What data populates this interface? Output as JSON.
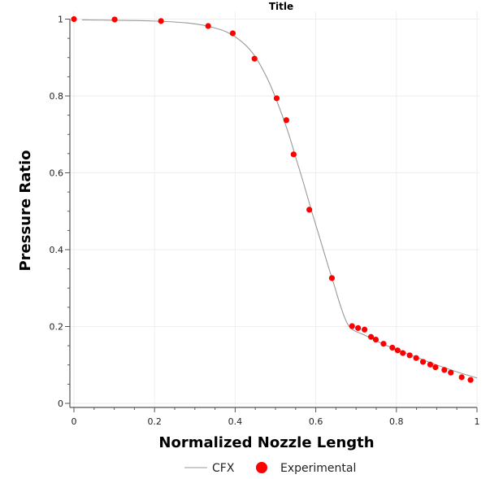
{
  "chart_data": {
    "type": "line",
    "title": "Title",
    "xlabel": "Normalized Nozzle Length",
    "ylabel": "Pressure Ratio",
    "xlim": [
      0,
      1
    ],
    "ylim": [
      0,
      1
    ],
    "xticks": [
      "0",
      "0.2",
      "0.4",
      "0.6",
      "0.8",
      "1"
    ],
    "yticks": [
      "0",
      "0.2",
      "0.4",
      "0.6",
      "0.8",
      "1"
    ],
    "grid": true,
    "legend": "bottom",
    "series": [
      {
        "name": "CFX",
        "kind": "line",
        "color": "#999999",
        "x": [
          0.02,
          0.1,
          0.2,
          0.28,
          0.33,
          0.38,
          0.42,
          0.45,
          0.48,
          0.5,
          0.53,
          0.55,
          0.57,
          0.59,
          0.61,
          0.63,
          0.645,
          0.66,
          0.675,
          0.69,
          0.72,
          0.76,
          0.8,
          0.85,
          0.9,
          0.95,
          1.0
        ],
        "y": [
          0.998,
          0.997,
          0.995,
          0.99,
          0.982,
          0.966,
          0.938,
          0.902,
          0.845,
          0.796,
          0.71,
          0.641,
          0.572,
          0.499,
          0.43,
          0.36,
          0.31,
          0.258,
          0.215,
          0.193,
          0.178,
          0.158,
          0.14,
          0.12,
          0.1,
          0.082,
          0.066
        ]
      },
      {
        "name": "Experimental",
        "kind": "scatter",
        "color": "#ff0000",
        "x": [
          0.0,
          0.101,
          0.216,
          0.333,
          0.394,
          0.448,
          0.503,
          0.527,
          0.545,
          0.584,
          0.64,
          0.69,
          0.705,
          0.721,
          0.737,
          0.749,
          0.768,
          0.79,
          0.803,
          0.816,
          0.833,
          0.849,
          0.866,
          0.884,
          0.897,
          0.919,
          0.935,
          0.962,
          0.984
        ],
        "y": [
          1.0,
          0.999,
          0.995,
          0.982,
          0.963,
          0.897,
          0.794,
          0.737,
          0.648,
          0.504,
          0.326,
          0.201,
          0.196,
          0.192,
          0.173,
          0.166,
          0.155,
          0.145,
          0.138,
          0.131,
          0.125,
          0.118,
          0.108,
          0.101,
          0.094,
          0.087,
          0.08,
          0.068,
          0.061
        ]
      }
    ]
  }
}
